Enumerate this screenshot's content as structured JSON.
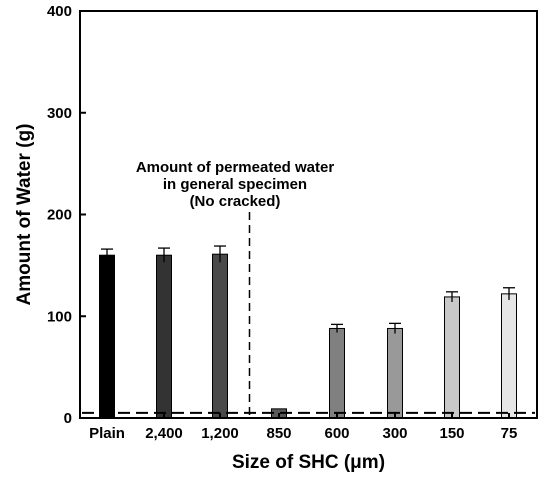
{
  "chart_data": {
    "type": "bar",
    "title": "",
    "xlabel": "Size of SHC (μm)",
    "ylabel": "Amount of Water (g)",
    "ylim": [
      0,
      400
    ],
    "yticks": [
      0,
      100,
      200,
      300,
      400
    ],
    "categories": [
      "Plain",
      "2,400",
      "1,200",
      "850",
      "600",
      "300",
      "150",
      "75"
    ],
    "values": [
      160,
      160,
      161,
      9,
      88,
      88,
      119,
      122
    ],
    "errors": [
      6,
      7,
      8,
      0,
      4,
      5,
      5,
      6
    ],
    "bar_colors": [
      "#000000",
      "#333333",
      "#4a4a4a",
      "#5a5a5a",
      "#808080",
      "#999999",
      "#c8c8c8",
      "#e6e6e6"
    ],
    "reference_line": {
      "value": 5,
      "style": "dashed"
    },
    "divider_after_index": 2,
    "annotation": [
      "Amount of permeated water",
      "in general specimen",
      "(No cracked)"
    ],
    "grid": false,
    "legend": "none"
  }
}
